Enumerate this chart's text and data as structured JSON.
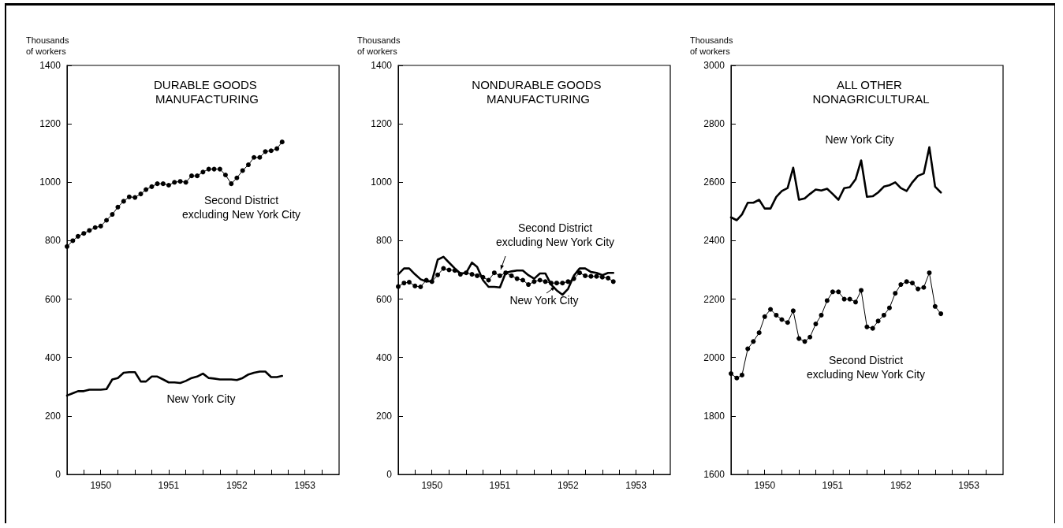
{
  "chart_data": [
    {
      "type": "line",
      "title": "DURABLE GOODS MANUFACTURING",
      "ylabel": "Thousands of workers",
      "x": [
        "1950-01",
        "1950-02",
        "1950-03",
        "1950-04",
        "1950-05",
        "1950-06",
        "1950-07",
        "1950-08",
        "1950-09",
        "1950-10",
        "1950-11",
        "1950-12",
        "1951-01",
        "1951-02",
        "1951-03",
        "1951-04",
        "1951-05",
        "1951-06",
        "1951-07",
        "1951-08",
        "1951-09",
        "1951-10",
        "1951-11",
        "1951-12",
        "1952-01",
        "1952-02",
        "1952-03",
        "1952-04",
        "1952-05",
        "1952-06",
        "1952-07",
        "1952-08",
        "1952-09",
        "1952-10",
        "1952-11",
        "1952-12",
        "1953-01",
        "1953-02",
        "1953-03"
      ],
      "series": [
        {
          "name": "Second District excluding New York City",
          "color": "#000000",
          "marker": "circle",
          "values": [
            780,
            800,
            815,
            825,
            835,
            845,
            850,
            870,
            890,
            915,
            935,
            950,
            948,
            960,
            975,
            985,
            995,
            995,
            990,
            1000,
            1003,
            1000,
            1022,
            1022,
            1035,
            1045,
            1045,
            1045,
            1025,
            995,
            1015,
            1040,
            1060,
            1085,
            1085,
            1105,
            1108,
            1115,
            1138
          ]
        },
        {
          "name": "New York City",
          "color": "#000000",
          "marker": "none",
          "values": [
            270,
            278,
            285,
            285,
            290,
            290,
            290,
            292,
            325,
            330,
            348,
            350,
            350,
            318,
            318,
            335,
            335,
            325,
            315,
            315,
            313,
            320,
            330,
            335,
            345,
            330,
            328,
            325,
            325,
            325,
            323,
            330,
            342,
            348,
            352,
            352,
            333,
            333,
            337
          ]
        }
      ],
      "xlim": [
        "1950-01",
        "1954-01"
      ],
      "xticks": [
        {
          "value": "1950-04",
          "label": null
        },
        {
          "value": "1950-07",
          "label": "1950"
        },
        {
          "value": "1950-10",
          "label": null
        },
        {
          "value": "1951-01",
          "label": null
        },
        {
          "value": "1951-04",
          "label": null
        },
        {
          "value": "1951-07",
          "label": "1951"
        },
        {
          "value": "1951-10",
          "label": null
        },
        {
          "value": "1952-01",
          "label": null
        },
        {
          "value": "1952-04",
          "label": null
        },
        {
          "value": "1952-07",
          "label": "1952"
        },
        {
          "value": "1952-10",
          "label": null
        },
        {
          "value": "1953-01",
          "label": null
        },
        {
          "value": "1953-04",
          "label": null
        },
        {
          "value": "1953-07",
          "label": "1953"
        },
        {
          "value": "1953-10",
          "label": null
        }
      ],
      "ylim": [
        0,
        1400
      ],
      "yticks": [
        0,
        200,
        400,
        600,
        800,
        1000,
        1200,
        1400
      ],
      "grid": false,
      "legend": false
    },
    {
      "type": "line",
      "title": "NONDURABLE GOODS MANUFACTURING",
      "ylabel": "Thousands of workers",
      "x": [
        "1950-01",
        "1950-02",
        "1950-03",
        "1950-04",
        "1950-05",
        "1950-06",
        "1950-07",
        "1950-08",
        "1950-09",
        "1950-10",
        "1950-11",
        "1950-12",
        "1951-01",
        "1951-02",
        "1951-03",
        "1951-04",
        "1951-05",
        "1951-06",
        "1951-07",
        "1951-08",
        "1951-09",
        "1951-10",
        "1951-11",
        "1951-12",
        "1952-01",
        "1952-02",
        "1952-03",
        "1952-04",
        "1952-05",
        "1952-06",
        "1952-07",
        "1952-08",
        "1952-09",
        "1952-10",
        "1952-11",
        "1952-12",
        "1953-01",
        "1953-02",
        "1953-03"
      ],
      "series": [
        {
          "name": "Second District excluding New York City",
          "color": "#000000",
          "marker": "circle",
          "values": [
            643,
            655,
            658,
            645,
            642,
            665,
            660,
            683,
            705,
            700,
            698,
            685,
            690,
            685,
            680,
            675,
            665,
            690,
            680,
            690,
            680,
            670,
            665,
            650,
            660,
            665,
            660,
            655,
            655,
            655,
            660,
            670,
            690,
            680,
            678,
            678,
            675,
            672,
            660
          ]
        },
        {
          "name": "New York City",
          "color": "#000000",
          "marker": "none",
          "values": [
            685,
            705,
            705,
            685,
            668,
            660,
            662,
            735,
            745,
            725,
            705,
            688,
            690,
            725,
            710,
            665,
            642,
            642,
            640,
            690,
            695,
            698,
            698,
            682,
            670,
            688,
            688,
            650,
            630,
            615,
            635,
            680,
            705,
            705,
            693,
            690,
            682,
            690,
            690
          ]
        }
      ],
      "xlim": [
        "1950-01",
        "1954-01"
      ],
      "xticks": [
        {
          "value": "1950-04",
          "label": null
        },
        {
          "value": "1950-07",
          "label": "1950"
        },
        {
          "value": "1950-10",
          "label": null
        },
        {
          "value": "1951-01",
          "label": null
        },
        {
          "value": "1951-04",
          "label": null
        },
        {
          "value": "1951-07",
          "label": "1951"
        },
        {
          "value": "1951-10",
          "label": null
        },
        {
          "value": "1952-01",
          "label": null
        },
        {
          "value": "1952-04",
          "label": null
        },
        {
          "value": "1952-07",
          "label": "1952"
        },
        {
          "value": "1952-10",
          "label": null
        },
        {
          "value": "1953-01",
          "label": null
        },
        {
          "value": "1953-04",
          "label": null
        },
        {
          "value": "1953-07",
          "label": "1953"
        },
        {
          "value": "1953-10",
          "label": null
        }
      ],
      "ylim": [
        0,
        1400
      ],
      "yticks": [
        0,
        200,
        400,
        600,
        800,
        1000,
        1200,
        1400
      ],
      "grid": false
    },
    {
      "type": "line",
      "title": "ALL OTHER NONAGRICULTURAL",
      "ylabel": "Thousands of workers",
      "x": [
        "1950-01",
        "1950-02",
        "1950-03",
        "1950-04",
        "1950-05",
        "1950-06",
        "1950-07",
        "1950-08",
        "1950-09",
        "1950-10",
        "1950-11",
        "1950-12",
        "1951-01",
        "1951-02",
        "1951-03",
        "1951-04",
        "1951-05",
        "1951-06",
        "1951-07",
        "1951-08",
        "1951-09",
        "1951-10",
        "1951-11",
        "1951-12",
        "1952-01",
        "1952-02",
        "1952-03",
        "1952-04",
        "1952-05",
        "1952-06",
        "1952-07",
        "1952-08",
        "1952-09",
        "1952-10",
        "1952-11",
        "1952-12",
        "1953-01",
        "1953-02"
      ],
      "series": [
        {
          "name": "New York City",
          "color": "#000000",
          "marker": "none",
          "values": [
            2480,
            2470,
            2490,
            2530,
            2530,
            2540,
            2510,
            2510,
            2550,
            2570,
            2580,
            2650,
            2540,
            2545,
            2560,
            2575,
            2572,
            2578,
            2560,
            2540,
            2580,
            2583,
            2610,
            2675,
            2550,
            2552,
            2565,
            2585,
            2590,
            2600,
            2580,
            2570,
            2600,
            2622,
            2630,
            2720,
            2585,
            2565
          ]
        },
        {
          "name": "Second District excluding New York City",
          "color": "#000000",
          "marker": "circle",
          "values": [
            1945,
            1930,
            1940,
            2030,
            2055,
            2085,
            2140,
            2165,
            2145,
            2130,
            2120,
            2160,
            2065,
            2055,
            2070,
            2115,
            2145,
            2195,
            2225,
            2225,
            2200,
            2200,
            2190,
            2230,
            2105,
            2100,
            2125,
            2145,
            2170,
            2220,
            2250,
            2260,
            2255,
            2235,
            2240,
            2290,
            2175,
            2150
          ]
        }
      ],
      "xlim": [
        "1950-01",
        "1954-01"
      ],
      "xticks": [
        {
          "value": "1950-04",
          "label": null
        },
        {
          "value": "1950-07",
          "label": "1950"
        },
        {
          "value": "1950-10",
          "label": null
        },
        {
          "value": "1951-01",
          "label": null
        },
        {
          "value": "1951-04",
          "label": null
        },
        {
          "value": "1951-07",
          "label": "1951"
        },
        {
          "value": "1951-10",
          "label": null
        },
        {
          "value": "1952-01",
          "label": null
        },
        {
          "value": "1952-04",
          "label": null
        },
        {
          "value": "1952-07",
          "label": "1952"
        },
        {
          "value": "1952-10",
          "label": null
        },
        {
          "value": "1953-01",
          "label": null
        },
        {
          "value": "1953-04",
          "label": null
        },
        {
          "value": "1953-07",
          "label": "1953"
        },
        {
          "value": "1953-10",
          "label": null
        }
      ],
      "ylim": [
        1600,
        3000
      ],
      "yticks": [
        1600,
        1800,
        2000,
        2200,
        2400,
        2600,
        2800,
        3000
      ],
      "grid": false,
      "legend": false
    }
  ]
}
